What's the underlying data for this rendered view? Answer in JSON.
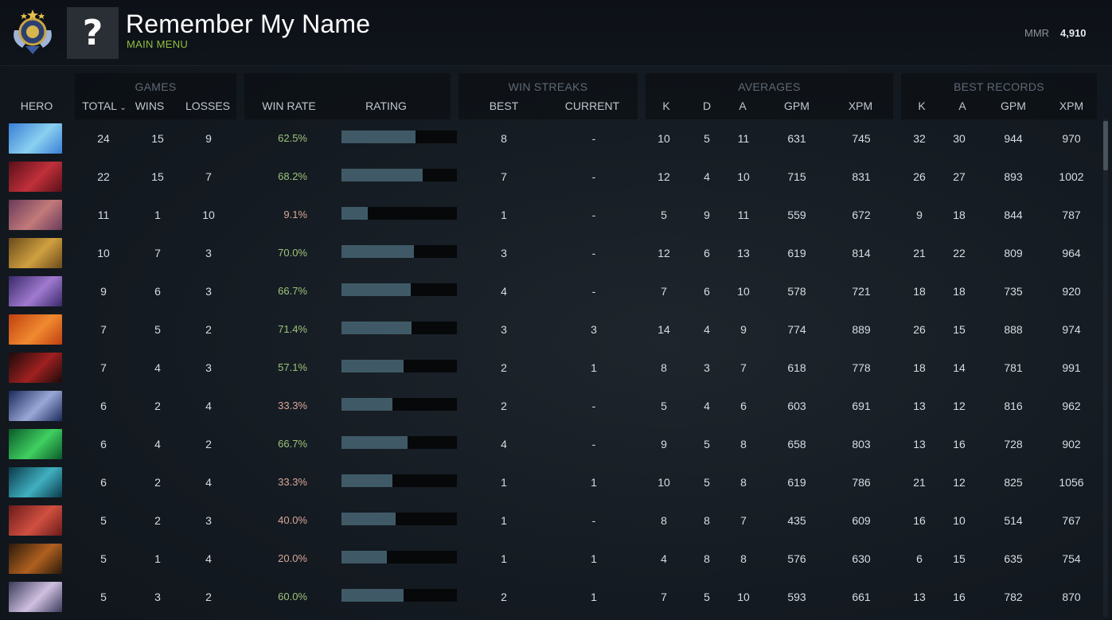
{
  "profile": {
    "name": "Remember My Name",
    "menu_label": "MAIN MENU",
    "avatar_placeholder": "?",
    "mmr_label": "MMR",
    "mmr_value": "4,910"
  },
  "groups": {
    "games": "GAMES",
    "win_streaks": "WIN STREAKS",
    "averages": "AVERAGES",
    "best_records": "BEST RECORDS"
  },
  "columns": {
    "hero": "HERO",
    "total": "TOTAL",
    "wins": "WINS",
    "losses": "LOSSES",
    "win_rate": "WIN RATE",
    "rating": "RATING",
    "best": "BEST",
    "current": "CURRENT",
    "avg_k": "K",
    "avg_d": "D",
    "avg_a": "A",
    "avg_gpm": "GPM",
    "avg_xpm": "XPM",
    "best_k": "K",
    "best_a": "A",
    "best_gpm": "GPM",
    "best_xpm": "XPM"
  },
  "sort_icon": "chevron-down-icon",
  "colors": {
    "win_rate_good": "#9cc37a",
    "win_rate_bad": "#d9a79a",
    "rating_bar": "#3f5a66",
    "accent_green": "#8fbf3a"
  },
  "rows": [
    {
      "hero_colors": [
        "#3a7fd6",
        "#8ad0f0"
      ],
      "total": "24",
      "wins": "15",
      "losses": "9",
      "win_rate": "62.5%",
      "rating": 0.64,
      "best": "8",
      "current": "-",
      "k": "10",
      "d": "5",
      "a": "11",
      "gpm": "631",
      "xpm": "745",
      "bk": "32",
      "ba": "30",
      "bgpm": "944",
      "bxpm": "970"
    },
    {
      "hero_colors": [
        "#5a0f18",
        "#c0303a"
      ],
      "total": "22",
      "wins": "15",
      "losses": "7",
      "win_rate": "68.2%",
      "rating": 0.7,
      "best": "7",
      "current": "-",
      "k": "12",
      "d": "4",
      "a": "10",
      "gpm": "715",
      "xpm": "831",
      "bk": "26",
      "ba": "27",
      "bgpm": "893",
      "bxpm": "1002"
    },
    {
      "hero_colors": [
        "#6a3a5a",
        "#c27a7a"
      ],
      "total": "11",
      "wins": "1",
      "losses": "10",
      "win_rate": "9.1%",
      "rating": 0.23,
      "best": "1",
      "current": "-",
      "k": "5",
      "d": "9",
      "a": "11",
      "gpm": "559",
      "xpm": "672",
      "bk": "9",
      "ba": "18",
      "bgpm": "844",
      "bxpm": "787"
    },
    {
      "hero_colors": [
        "#6a4a1a",
        "#d0a040"
      ],
      "total": "10",
      "wins": "7",
      "losses": "3",
      "win_rate": "70.0%",
      "rating": 0.63,
      "best": "3",
      "current": "-",
      "k": "12",
      "d": "6",
      "a": "13",
      "gpm": "619",
      "xpm": "814",
      "bk": "21",
      "ba": "22",
      "bgpm": "809",
      "bxpm": "964"
    },
    {
      "hero_colors": [
        "#3a2a6a",
        "#a07ad0"
      ],
      "total": "9",
      "wins": "6",
      "losses": "3",
      "win_rate": "66.7%",
      "rating": 0.6,
      "best": "4",
      "current": "-",
      "k": "7",
      "d": "6",
      "a": "10",
      "gpm": "578",
      "xpm": "721",
      "bk": "18",
      "ba": "18",
      "bgpm": "735",
      "bxpm": "920"
    },
    {
      "hero_colors": [
        "#c04010",
        "#f08a30"
      ],
      "total": "7",
      "wins": "5",
      "losses": "2",
      "win_rate": "71.4%",
      "rating": 0.61,
      "best": "3",
      "current": "3",
      "k": "14",
      "d": "4",
      "a": "9",
      "gpm": "774",
      "xpm": "889",
      "bk": "26",
      "ba": "15",
      "bgpm": "888",
      "bxpm": "974"
    },
    {
      "hero_colors": [
        "#1a0a0a",
        "#a02020"
      ],
      "total": "7",
      "wins": "4",
      "losses": "3",
      "win_rate": "57.1%",
      "rating": 0.54,
      "best": "2",
      "current": "1",
      "k": "8",
      "d": "3",
      "a": "7",
      "gpm": "618",
      "xpm": "778",
      "bk": "18",
      "ba": "14",
      "bgpm": "781",
      "bxpm": "991"
    },
    {
      "hero_colors": [
        "#1a2a5a",
        "#9aa8d8"
      ],
      "total": "6",
      "wins": "2",
      "losses": "4",
      "win_rate": "33.3%",
      "rating": 0.44,
      "best": "2",
      "current": "-",
      "k": "5",
      "d": "4",
      "a": "6",
      "gpm": "603",
      "xpm": "691",
      "bk": "13",
      "ba": "12",
      "bgpm": "816",
      "bxpm": "962"
    },
    {
      "hero_colors": [
        "#0a5a2a",
        "#40d060"
      ],
      "total": "6",
      "wins": "4",
      "losses": "2",
      "win_rate": "66.7%",
      "rating": 0.57,
      "best": "4",
      "current": "-",
      "k": "9",
      "d": "5",
      "a": "8",
      "gpm": "658",
      "xpm": "803",
      "bk": "13",
      "ba": "16",
      "bgpm": "728",
      "bxpm": "902"
    },
    {
      "hero_colors": [
        "#0a3a4a",
        "#40b0c0"
      ],
      "total": "6",
      "wins": "2",
      "losses": "4",
      "win_rate": "33.3%",
      "rating": 0.44,
      "best": "1",
      "current": "1",
      "k": "10",
      "d": "5",
      "a": "8",
      "gpm": "619",
      "xpm": "786",
      "bk": "21",
      "ba": "12",
      "bgpm": "825",
      "bxpm": "1056"
    },
    {
      "hero_colors": [
        "#6a1a1a",
        "#d05040"
      ],
      "total": "5",
      "wins": "2",
      "losses": "3",
      "win_rate": "40.0%",
      "rating": 0.47,
      "best": "1",
      "current": "-",
      "k": "8",
      "d": "8",
      "a": "7",
      "gpm": "435",
      "xpm": "609",
      "bk": "16",
      "ba": "10",
      "bgpm": "514",
      "bxpm": "767"
    },
    {
      "hero_colors": [
        "#2a1a0a",
        "#b06020"
      ],
      "total": "5",
      "wins": "1",
      "losses": "4",
      "win_rate": "20.0%",
      "rating": 0.39,
      "best": "1",
      "current": "1",
      "k": "4",
      "d": "8",
      "a": "8",
      "gpm": "576",
      "xpm": "630",
      "bk": "6",
      "ba": "15",
      "bgpm": "635",
      "bxpm": "754"
    },
    {
      "hero_colors": [
        "#3a3a5a",
        "#d0c0e0"
      ],
      "total": "5",
      "wins": "3",
      "losses": "2",
      "win_rate": "60.0%",
      "rating": 0.54,
      "best": "2",
      "current": "1",
      "k": "7",
      "d": "5",
      "a": "10",
      "gpm": "593",
      "xpm": "661",
      "bk": "13",
      "ba": "16",
      "bgpm": "782",
      "bxpm": "870"
    }
  ]
}
